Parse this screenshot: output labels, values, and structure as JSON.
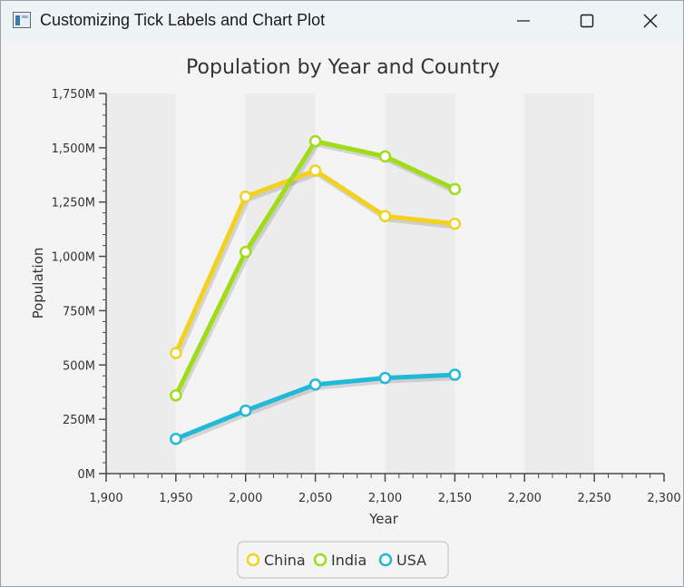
{
  "window": {
    "title": "Customizing Tick Labels and Chart Plot",
    "icon": "java-app-icon",
    "controls": [
      "minimize-icon",
      "maximize-icon",
      "close-icon"
    ]
  },
  "chart_data": {
    "type": "line",
    "title": "Population by Year and Country",
    "xlabel": "Year",
    "ylabel": "Population",
    "xlim": [
      1900,
      2300
    ],
    "ylim": [
      0,
      1750
    ],
    "x_ticks": [
      1900,
      1950,
      2000,
      2050,
      2100,
      2150,
      2200,
      2250,
      2300
    ],
    "x_tick_labels": [
      "1,900",
      "1,950",
      "2,000",
      "2,050",
      "2,100",
      "2,150",
      "2,200",
      "2,250",
      "2,300"
    ],
    "y_ticks": [
      0,
      250,
      500,
      750,
      1000,
      1250,
      1500,
      1750
    ],
    "y_tick_labels": [
      "0M",
      "250M",
      "500M",
      "750M",
      "1,000M",
      "1,250M",
      "1,500M",
      "1,750M"
    ],
    "grid": "alternating-column-fill",
    "legend": "bottom",
    "x": [
      1950,
      2000,
      2050,
      2100,
      2150
    ],
    "series": [
      {
        "name": "China",
        "color": "#f3d21f",
        "values": [
          555,
          1275,
          1395,
          1185,
          1150
        ]
      },
      {
        "name": "India",
        "color": "#a0dc18",
        "values": [
          360,
          1020,
          1530,
          1460,
          1310
        ]
      },
      {
        "name": "USA",
        "color": "#22b8d8",
        "values": [
          160,
          290,
          410,
          440,
          455
        ]
      }
    ]
  }
}
